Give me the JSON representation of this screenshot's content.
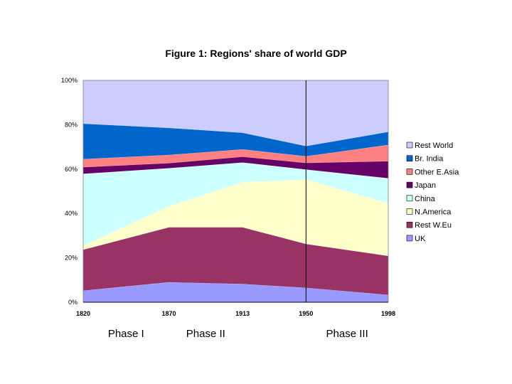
{
  "chart_data": {
    "type": "area",
    "stacked": true,
    "title": "Figure 1:  Regions' share of world GDP",
    "x": [
      "1820",
      "1870",
      "1913",
      "1950",
      "1998"
    ],
    "x_values": [
      1820,
      1870,
      1913,
      1950,
      1998
    ],
    "ylim": [
      0,
      100
    ],
    "y_ticks": [
      "0%",
      "20%",
      "40%",
      "60%",
      "80%",
      "100%"
    ],
    "legend_position": "right",
    "series": [
      {
        "name": "UK",
        "color": "#9999ff",
        "values": [
          5.2,
          9.0,
          8.2,
          6.5,
          3.3
        ]
      },
      {
        "name": "Rest W.Eu",
        "color": "#993366",
        "values": [
          18.5,
          24.8,
          25.6,
          19.8,
          17.6
        ]
      },
      {
        "name": "N.America",
        "color": "#ffffcc",
        "values": [
          1.8,
          9.5,
          20.3,
          29.0,
          23.8
        ]
      },
      {
        "name": "China",
        "color": "#ccffff",
        "values": [
          32.4,
          17.1,
          8.9,
          4.5,
          11.2
        ]
      },
      {
        "name": "Japan",
        "color": "#660066",
        "values": [
          3.0,
          2.3,
          2.6,
          3.0,
          7.7
        ]
      },
      {
        "name": "Other E.Asia",
        "color": "#ff8080",
        "values": [
          3.6,
          3.7,
          3.3,
          3.0,
          7.3
        ]
      },
      {
        "name": "Br. India",
        "color": "#0066cc",
        "values": [
          16.0,
          12.2,
          7.5,
          4.6,
          5.9
        ]
      },
      {
        "name": "Rest World",
        "color": "#ccccff",
        "values": [
          19.5,
          21.4,
          23.6,
          29.6,
          23.2
        ]
      }
    ],
    "legend_order": [
      "Rest World",
      "Br. India",
      "Other E.Asia",
      "Japan",
      "China",
      "N.America",
      "Rest W.Eu",
      "UK"
    ],
    "marker_line_x": "1950",
    "annotations": [
      {
        "text": "Phase I",
        "anchor": "1845"
      },
      {
        "text": "Phase II",
        "anchor": "1891.5"
      },
      {
        "text": "Phase III",
        "anchor": "1974"
      }
    ]
  }
}
